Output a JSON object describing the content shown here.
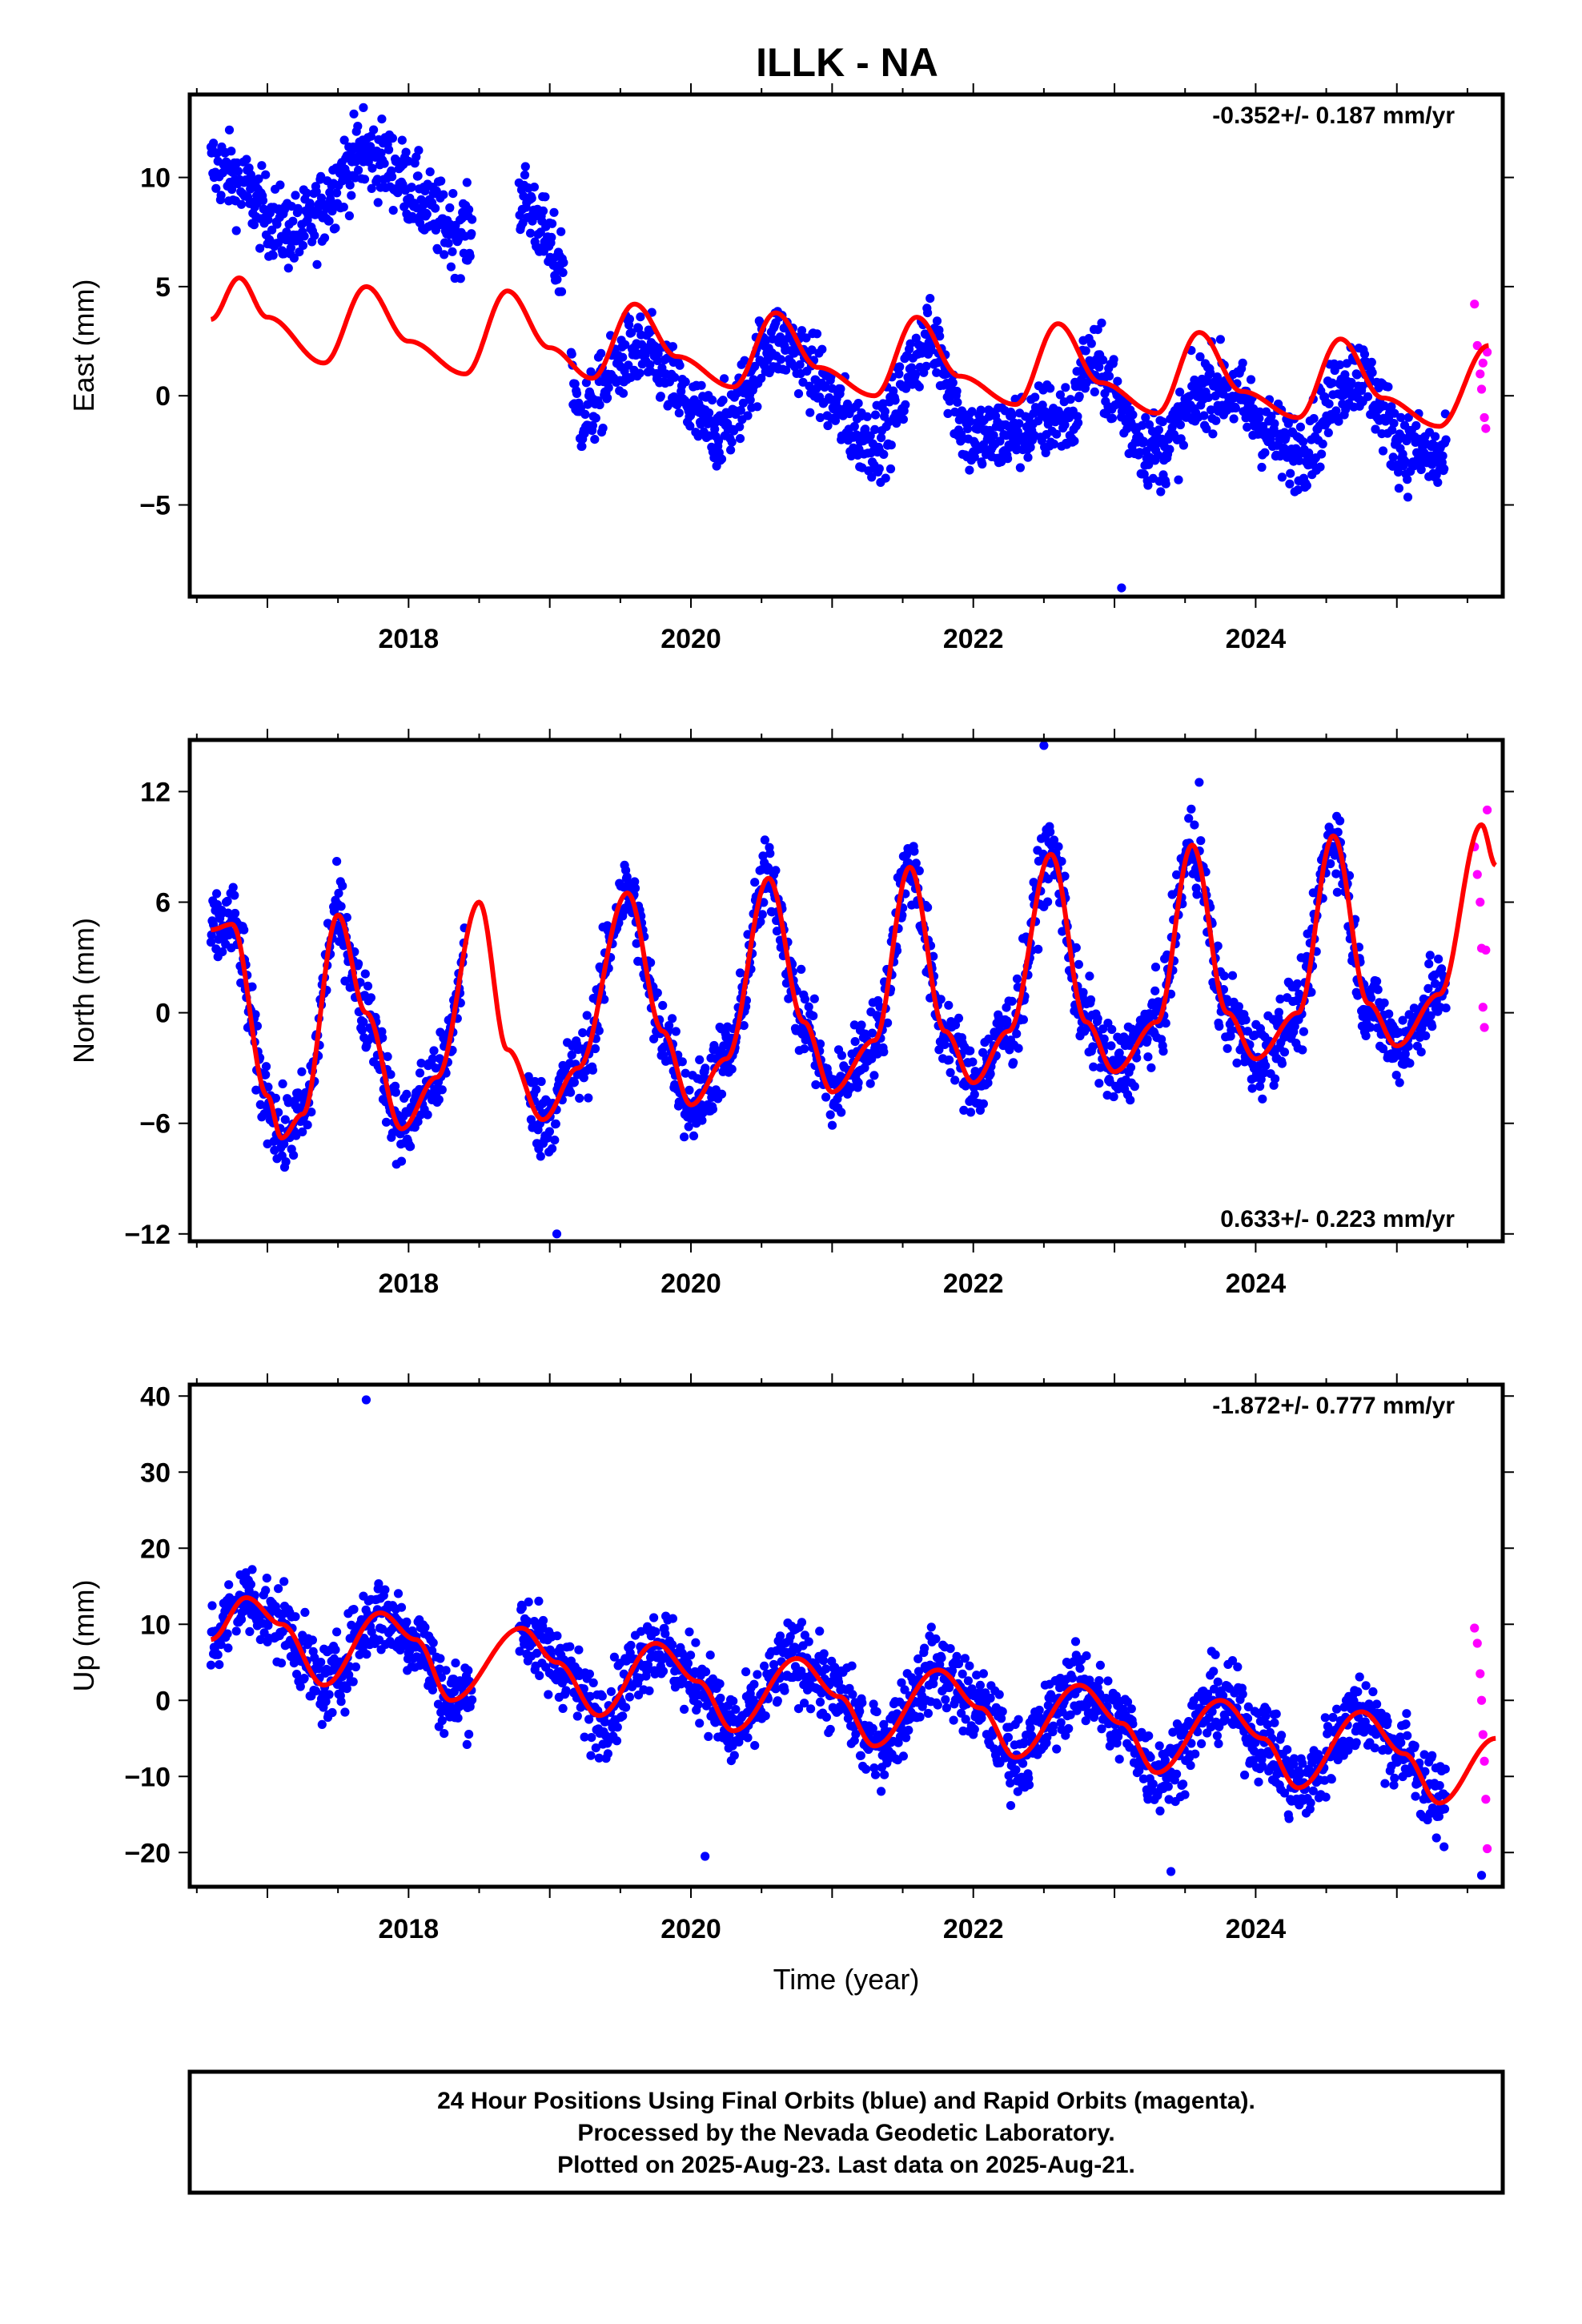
{
  "title": "ILLK - NA",
  "colors": {
    "final": "#0000ff",
    "rapid": "#ff00ff",
    "model": "#ff0000",
    "frame": "#000000"
  },
  "chart_data": [
    {
      "type": "scatter",
      "panel": "east",
      "ylabel": "East (mm)",
      "xlabel": "",
      "rate": "-0.352+/- 0.187 mm/yr",
      "rate_position": "top-right",
      "xlim": [
        2016.45,
        2025.75
      ],
      "ylim": [
        -9.2,
        13.8
      ],
      "xticks": [
        2018,
        2020,
        2022,
        2024
      ],
      "yticks": [
        -5,
        0,
        5,
        10
      ],
      "gaps": [
        [
          2018.45,
          2018.78
        ],
        [
          2019.1,
          2019.15
        ]
      ],
      "series": [
        {
          "kind": "final",
          "span": [
            2016.6,
            2025.35
          ],
          "color": "blue",
          "trend": [
            [
              2016.6,
              10.5
            ],
            [
              2017.2,
              7.5
            ],
            [
              2017.7,
              11.0
            ],
            [
              2018.4,
              7.5
            ],
            [
              2018.8,
              9.0
            ],
            [
              2019.1,
              6.0
            ],
            [
              2019.2,
              -1.0
            ],
            [
              2019.6,
              2.0
            ],
            [
              2020.2,
              -1.5
            ],
            [
              2020.6,
              2.5
            ],
            [
              2021.3,
              -2.0
            ],
            [
              2021.7,
              2.5
            ],
            [
              2022.0,
              -2.0
            ],
            [
              2022.7,
              -1.0
            ],
            [
              2022.8,
              1.5
            ],
            [
              2023.3,
              -2.5
            ],
            [
              2023.7,
              0.5
            ],
            [
              2024.3,
              -2.5
            ],
            [
              2024.7,
              1.0
            ],
            [
              2025.1,
              -2.5
            ],
            [
              2025.3,
              -3.0
            ]
          ],
          "outliers": [
            [
              2023.05,
              -8.8
            ],
            [
              2017.68,
              13.2
            ]
          ]
        },
        {
          "kind": "rapid",
          "x": [
            2025.55,
            2025.57,
            2025.59,
            2025.6,
            2025.61,
            2025.62,
            2025.63,
            2025.64
          ],
          "y": [
            4.2,
            2.3,
            1.0,
            0.3,
            1.5,
            -1.0,
            -1.5,
            2.0
          ]
        },
        {
          "kind": "model",
          "points": [
            [
              2016.6,
              3.5
            ],
            [
              2016.8,
              5.4
            ],
            [
              2017.0,
              3.6
            ],
            [
              2017.4,
              1.5
            ],
            [
              2017.7,
              5.0
            ],
            [
              2018.0,
              2.5
            ],
            [
              2018.4,
              1.0
            ],
            [
              2018.7,
              4.8
            ],
            [
              2019.0,
              2.2
            ],
            [
              2019.3,
              0.8
            ],
            [
              2019.6,
              4.2
            ],
            [
              2019.9,
              1.8
            ],
            [
              2020.3,
              0.4
            ],
            [
              2020.6,
              3.8
            ],
            [
              2020.9,
              1.3
            ],
            [
              2021.3,
              0.0
            ],
            [
              2021.6,
              3.6
            ],
            [
              2021.9,
              0.9
            ],
            [
              2022.3,
              -0.4
            ],
            [
              2022.6,
              3.3
            ],
            [
              2022.9,
              0.6
            ],
            [
              2023.3,
              -0.8
            ],
            [
              2023.6,
              2.9
            ],
            [
              2023.9,
              0.2
            ],
            [
              2024.3,
              -1.0
            ],
            [
              2024.6,
              2.6
            ],
            [
              2024.9,
              -0.1
            ],
            [
              2025.3,
              -1.4
            ],
            [
              2025.65,
              2.3
            ]
          ]
        }
      ]
    },
    {
      "type": "scatter",
      "panel": "north",
      "ylabel": "North (mm)",
      "xlabel": "",
      "rate": "0.633+/- 0.223 mm/yr",
      "rate_position": "bottom-right",
      "xlim": [
        2016.45,
        2025.75
      ],
      "ylim": [
        -12.4,
        14.8
      ],
      "xticks": [
        2018,
        2020,
        2022,
        2024
      ],
      "yticks": [
        -12,
        -6,
        0,
        6,
        12
      ],
      "gaps": [
        [
          2018.4,
          2018.85
        ]
      ],
      "series": [
        {
          "kind": "final",
          "span": [
            2016.6,
            2025.35
          ],
          "color": "blue",
          "outliers": [
            [
              2019.05,
              -12.0
            ],
            [
              2022.5,
              14.5
            ],
            [
              2023.6,
              12.5
            ]
          ]
        },
        {
          "kind": "rapid",
          "x": [
            2025.55,
            2025.57,
            2025.59,
            2025.6,
            2025.61,
            2025.62,
            2025.63,
            2025.64
          ],
          "y": [
            9.0,
            7.5,
            6.0,
            3.5,
            0.3,
            -0.8,
            3.4,
            11.0
          ]
        },
        {
          "kind": "model",
          "points": [
            [
              2016.6,
              4.5
            ],
            [
              2016.75,
              4.8
            ],
            [
              2017.0,
              -4.5
            ],
            [
              2017.1,
              -6.8
            ],
            [
              2017.25,
              -5.5
            ],
            [
              2017.5,
              5.3
            ],
            [
              2017.7,
              0.0
            ],
            [
              2017.95,
              -6.3
            ],
            [
              2018.2,
              -3.5
            ],
            [
              2018.5,
              6.0
            ],
            [
              2018.7,
              -2.0
            ],
            [
              2018.95,
              -5.8
            ],
            [
              2019.2,
              -3.0
            ],
            [
              2019.55,
              6.5
            ],
            [
              2019.8,
              -1.0
            ],
            [
              2020.0,
              -5.0
            ],
            [
              2020.25,
              -2.5
            ],
            [
              2020.55,
              7.3
            ],
            [
              2020.8,
              -0.5
            ],
            [
              2021.0,
              -4.3
            ],
            [
              2021.3,
              -1.5
            ],
            [
              2021.55,
              7.9
            ],
            [
              2021.8,
              -1.0
            ],
            [
              2022.0,
              -3.8
            ],
            [
              2022.25,
              -1.0
            ],
            [
              2022.55,
              8.6
            ],
            [
              2022.8,
              -0.5
            ],
            [
              2023.0,
              -3.2
            ],
            [
              2023.3,
              -0.5
            ],
            [
              2023.55,
              9.1
            ],
            [
              2023.8,
              0.0
            ],
            [
              2024.0,
              -2.5
            ],
            [
              2024.3,
              0.0
            ],
            [
              2024.55,
              9.6
            ],
            [
              2024.8,
              0.5
            ],
            [
              2025.0,
              -1.8
            ],
            [
              2025.3,
              1.0
            ],
            [
              2025.6,
              10.2
            ],
            [
              2025.7,
              8.0
            ]
          ]
        }
      ]
    },
    {
      "type": "scatter",
      "panel": "up",
      "ylabel": "Up (mm)",
      "xlabel": "Time (year)",
      "rate": "-1.872+/- 0.777 mm/yr",
      "rate_position": "top-right",
      "xlim": [
        2016.45,
        2025.75
      ],
      "ylim": [
        -24.5,
        41.5
      ],
      "xticks": [
        2018,
        2020,
        2022,
        2024
      ],
      "yticks": [
        -20,
        -10,
        0,
        10,
        20,
        30,
        40
      ],
      "gaps": [
        [
          2018.45,
          2018.78
        ]
      ],
      "series": [
        {
          "kind": "final",
          "span": [
            2016.6,
            2025.35
          ],
          "color": "blue",
          "outliers": [
            [
              2017.7,
              39.5
            ],
            [
              2023.4,
              -22.5
            ],
            [
              2025.6,
              -23.0
            ],
            [
              2020.1,
              -20.5
            ]
          ]
        },
        {
          "kind": "rapid",
          "x": [
            2025.55,
            2025.57,
            2025.59,
            2025.6,
            2025.61,
            2025.62,
            2025.63,
            2025.64
          ],
          "y": [
            9.5,
            7.5,
            3.5,
            0.0,
            -4.5,
            -8.0,
            -13.0,
            -19.5
          ]
        },
        {
          "kind": "model",
          "points": [
            [
              2016.6,
              8.0
            ],
            [
              2016.85,
              13.5
            ],
            [
              2017.1,
              10.0
            ],
            [
              2017.4,
              2.0
            ],
            [
              2017.8,
              11.5
            ],
            [
              2018.05,
              8.0
            ],
            [
              2018.3,
              0.0
            ],
            [
              2018.8,
              9.5
            ],
            [
              2019.05,
              5.0
            ],
            [
              2019.35,
              -2.0
            ],
            [
              2019.75,
              7.5
            ],
            [
              2020.05,
              2.5
            ],
            [
              2020.3,
              -4.0
            ],
            [
              2020.75,
              5.5
            ],
            [
              2021.05,
              0.5
            ],
            [
              2021.3,
              -6.0
            ],
            [
              2021.75,
              4.0
            ],
            [
              2022.05,
              -1.0
            ],
            [
              2022.3,
              -7.5
            ],
            [
              2022.75,
              2.0
            ],
            [
              2023.05,
              -3.0
            ],
            [
              2023.3,
              -9.5
            ],
            [
              2023.75,
              0.0
            ],
            [
              2024.05,
              -5.0
            ],
            [
              2024.3,
              -11.5
            ],
            [
              2024.75,
              -1.5
            ],
            [
              2025.05,
              -7.0
            ],
            [
              2025.3,
              -13.5
            ],
            [
              2025.7,
              -5.0
            ]
          ]
        }
      ]
    }
  ],
  "footer": {
    "line1": "24 Hour Positions Using Final Orbits (blue) and Rapid Orbits (magenta).",
    "line2": "Processed by the Nevada Geodetic Laboratory.",
    "line3": "Plotted on 2025-Aug-23. Last data on 2025-Aug-21."
  }
}
